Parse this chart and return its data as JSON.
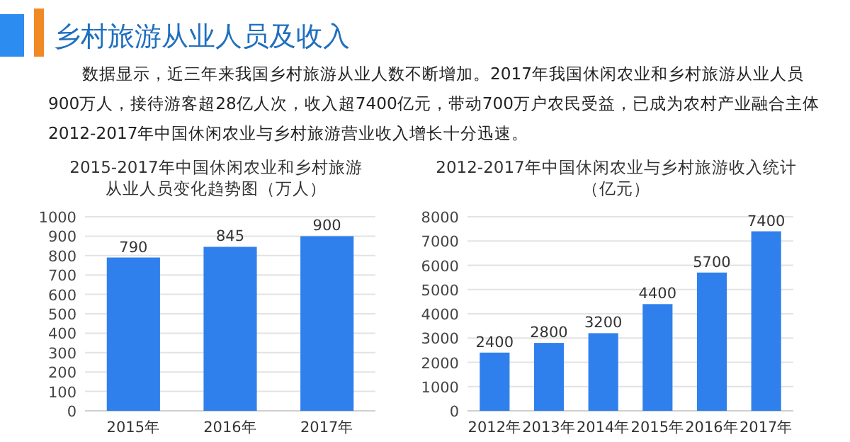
{
  "chart_data": [
    {
      "type": "other",
      "title": "乡村旅游从业人员及收入",
      "annotations": [
        "数据显示，近三年来我国乡村旅游从业人数不断增加。2017年我国休闲农业和乡村旅游从业人员",
        "900万人，接待游客超28亿人次，收入超7400亿元，带动700万户农民受益，已成为农村产业融合主体",
        "2012-2017年中国休闲农业与乡村旅游营业收入增长十分迅速。"
      ]
    },
    {
      "type": "bar",
      "title": "2015-2017年中国休闲农业和乡村旅游",
      "subtitle": "从业人员变化趋势图（万人）",
      "categories": [
        "2015年",
        "2016年",
        "2017年"
      ],
      "values": [
        790,
        845,
        900
      ],
      "color": "#2f80ed",
      "ylim": [
        0,
        1000
      ],
      "yticks": [
        0,
        100,
        200,
        300,
        400,
        500,
        600,
        700,
        800,
        900,
        1000
      ],
      "grid": "y",
      "data_labels": true
    },
    {
      "type": "bar",
      "title": "2012-2017年中国休闲农业与乡村旅游收入统计",
      "subtitle": "（亿元）",
      "categories": [
        "2012年",
        "2013年",
        "2014年",
        "2015年",
        "2016年",
        "2017年"
      ],
      "values": [
        2400,
        2800,
        3200,
        4400,
        5700,
        7400
      ],
      "color": "#2f80ed",
      "ylim": [
        0,
        8000
      ],
      "yticks": [
        0,
        1000,
        2000,
        3000,
        4000,
        5000,
        6000,
        7000,
        8000
      ],
      "grid": "y",
      "data_labels": true
    }
  ]
}
